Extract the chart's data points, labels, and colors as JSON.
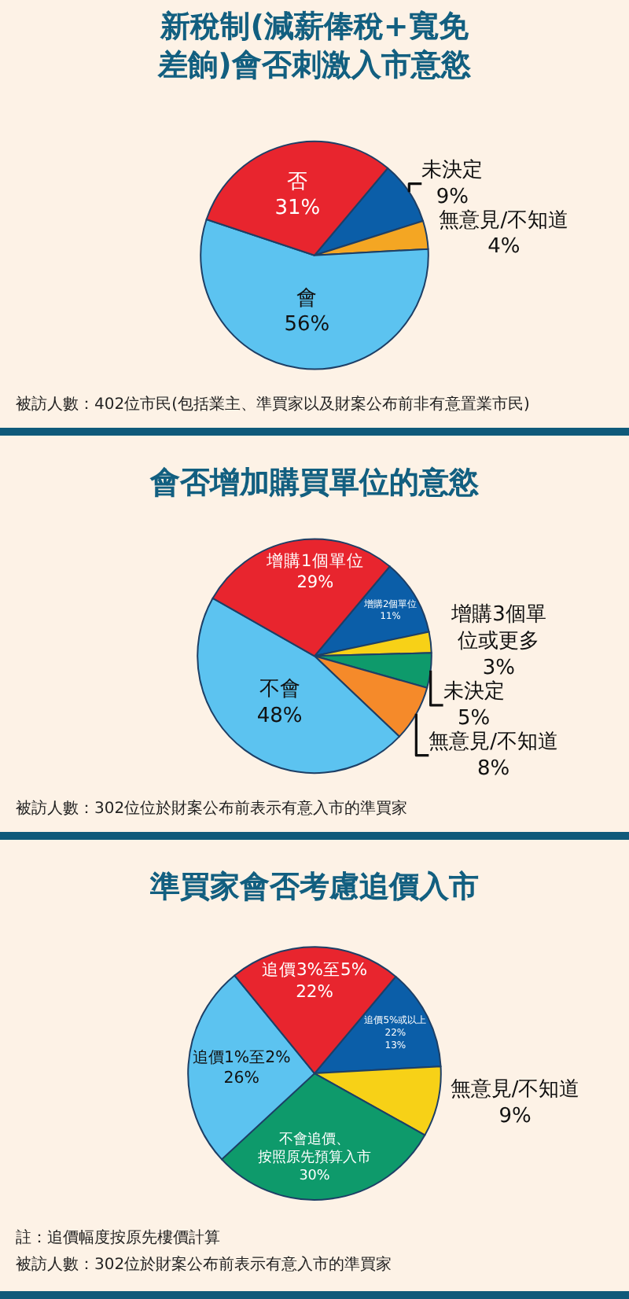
{
  "chart_data": [
    {
      "type": "pie",
      "title": "新稅制(減薪俸稅+寬免差餉)會否刺激入市意慾",
      "categories": [
        "未決定",
        "無意見/不知道",
        "會",
        "否"
      ],
      "values": [
        9,
        4,
        56,
        31
      ],
      "value_labels": [
        "9%",
        "4%",
        "56%",
        "31%"
      ],
      "colors": [
        "#0b5ea8",
        "#f4a623",
        "#5cc3f0",
        "#e8252e"
      ],
      "legend": false,
      "annotations": [
        "被訪人數：402位市民(包括業主、準買家以及財案公布前非有意置業市民)"
      ]
    },
    {
      "type": "pie",
      "title": "會否增加購買單位的意慾",
      "categories": [
        "增購2個單位",
        "增購3個單位或更多",
        "未決定",
        "無意見/不知道",
        "不會",
        "增購1個單位"
      ],
      "values": [
        11,
        3,
        5,
        8,
        48,
        29
      ],
      "value_labels": [
        "11%",
        "3%",
        "5%",
        "8%",
        "48%",
        "29%"
      ],
      "colors": [
        "#0b5ea8",
        "#f7d117",
        "#0e9a6b",
        "#f58a2a",
        "#5cc3f0",
        "#e8252e"
      ],
      "legend": false,
      "annotations": [
        "被訪人數：302位位於財案公布前表示有意入市的準買家"
      ]
    },
    {
      "type": "pie",
      "title": "準買家會否考慮追價入市",
      "categories": [
        "追價5%或以上 22%",
        "無意見/不知道",
        "不會追價、按照原先預算入市",
        "追價1%至2%",
        "追價3%至5%"
      ],
      "values": [
        13,
        9,
        30,
        26,
        22
      ],
      "value_labels": [
        "13%",
        "9%",
        "30%",
        "26%",
        "22%"
      ],
      "colors": [
        "#0b5ea8",
        "#f7d117",
        "#0e9a6b",
        "#5cc3f0",
        "#e8252e"
      ],
      "legend": false,
      "annotations": [
        "註：追價幅度按原先樓價計算",
        "被訪人數：302位於財案公布前表示有意入市的準買家"
      ]
    }
  ]
}
